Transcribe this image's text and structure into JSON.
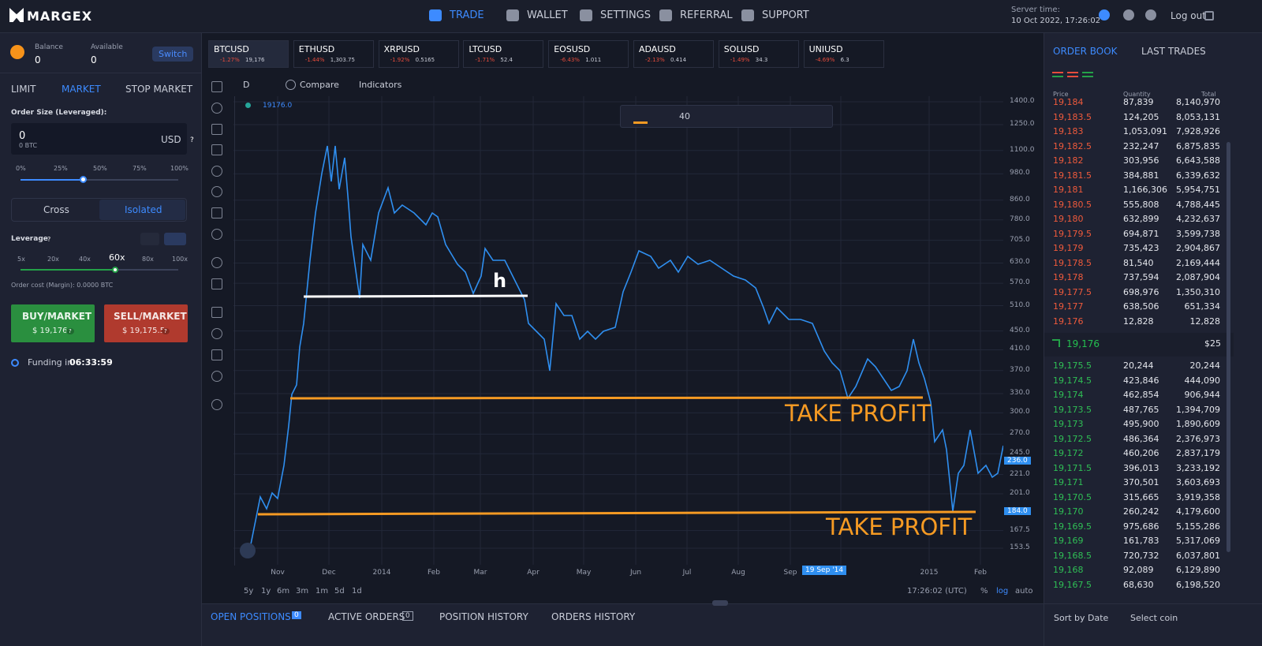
{
  "nav": {
    "logo": "MARGEX",
    "items": [
      "TRADE",
      "WALLET",
      "SETTINGS",
      "REFERRAL",
      "SUPPORT"
    ],
    "server_time_label": "Server time:",
    "server_time": "10 Oct 2022, 17:26:02",
    "logout": "Log out"
  },
  "account": {
    "balance_label": "Balance",
    "balance": "0",
    "available_label": "Available",
    "available": "0",
    "switch": "Switch"
  },
  "order_form": {
    "tabs": [
      "LIMIT",
      "MARKET",
      "STOP MARKET"
    ],
    "size_label": "Order Size (Leveraged):",
    "size": "0",
    "size_btc": "0 BTC",
    "currency": "USD",
    "help": "?",
    "percents": [
      "0%",
      "25%",
      "50%",
      "75%",
      "100%"
    ],
    "margin_modes": [
      "Cross",
      "Isolated"
    ],
    "leverage_label": "Leverage",
    "leverage_help": "?",
    "leverages": [
      "5x",
      "20x",
      "40x",
      "60x",
      "80x",
      "100x"
    ],
    "order_cost": "Order cost (Margin): 0.0000 BTC",
    "buy_label": "BUY/MARKET",
    "buy_price": "$ 19,176",
    "buy_help": "?",
    "sell_label": "SELL/MARKET",
    "sell_price": "$ 19,175.5",
    "sell_help": "?",
    "funding_label": "Funding in",
    "funding_time": "06:33:59"
  },
  "tickers": [
    {
      "symbol": "BTCUSD",
      "change": "-1.27%",
      "price": "19,176"
    },
    {
      "symbol": "ETHUSD",
      "change": "-1.44%",
      "price": "1,303.75"
    },
    {
      "symbol": "XRPUSD",
      "change": "-1.92%",
      "price": "0.5165"
    },
    {
      "symbol": "LTCUSD",
      "change": "-1.71%",
      "price": "52.4"
    },
    {
      "symbol": "EOSUSD",
      "change": "-6.43%",
      "price": "1.011"
    },
    {
      "symbol": "ADAUSD",
      "change": "-2.13%",
      "price": "0.414"
    },
    {
      "symbol": "SOLUSD",
      "change": "-1.49%",
      "price": "34.3"
    },
    {
      "symbol": "UNIUSD",
      "change": "-4.69%",
      "price": "6.3"
    }
  ],
  "chart": {
    "interval": "D",
    "compare": "Compare",
    "indicators": "Indicators",
    "last_value": "19176.0",
    "line_width": "40",
    "y_labels": [
      "1400.0",
      "1250.0",
      "1100.0",
      "980.0",
      "860.0",
      "780.0",
      "705.0",
      "630.0",
      "570.0",
      "510.0",
      "450.0",
      "410.0",
      "370.0",
      "330.0",
      "300.0",
      "270.0",
      "245.0",
      "221.0",
      "201.0",
      "167.5",
      "153.5"
    ],
    "price_tags": [
      "236.0",
      "184.0"
    ],
    "x_labels": [
      "Nov",
      "Dec",
      "2014",
      "Feb",
      "Mar",
      "Apr",
      "May",
      "Jun",
      "Jul",
      "Aug",
      "Sep",
      "ct",
      "2015",
      "Feb"
    ],
    "date_tag": "19 Sep '14",
    "annotations": [
      "h",
      "TAKE PROFIT",
      "TAKE PROFIT"
    ],
    "ranges": [
      "5y",
      "1y",
      "6m",
      "3m",
      "1m",
      "5d",
      "1d"
    ],
    "clock": "17:26:02 (UTC)",
    "scale_options": [
      "%",
      "log",
      "auto"
    ]
  },
  "bottom_tabs": [
    {
      "label": "OPEN POSITIONS",
      "count": "0"
    },
    {
      "label": "ACTIVE ORDERS",
      "count": "0"
    },
    {
      "label": "POSITION HISTORY"
    },
    {
      "label": "ORDERS HISTORY"
    }
  ],
  "order_book": {
    "tabs": [
      "ORDER BOOK",
      "LAST TRADES"
    ],
    "columns": [
      "Price",
      "Quantity",
      "Total"
    ],
    "asks": [
      [
        "19,184",
        "87,839",
        "8,140,970"
      ],
      [
        "19,183.5",
        "124,205",
        "8,053,131"
      ],
      [
        "19,183",
        "1,053,091",
        "7,928,926"
      ],
      [
        "19,182.5",
        "232,247",
        "6,875,835"
      ],
      [
        "19,182",
        "303,956",
        "6,643,588"
      ],
      [
        "19,181.5",
        "384,881",
        "6,339,632"
      ],
      [
        "19,181",
        "1,166,306",
        "5,954,751"
      ],
      [
        "19,180.5",
        "555,808",
        "4,788,445"
      ],
      [
        "19,180",
        "632,899",
        "4,232,637"
      ],
      [
        "19,179.5",
        "694,871",
        "3,599,738"
      ],
      [
        "19,179",
        "735,423",
        "2,904,867"
      ],
      [
        "19,178.5",
        "81,540",
        "2,169,444"
      ],
      [
        "19,178",
        "737,594",
        "2,087,904"
      ],
      [
        "19,177.5",
        "698,976",
        "1,350,310"
      ],
      [
        "19,177",
        "638,506",
        "651,334"
      ],
      [
        "19,176",
        "12,828",
        "12,828"
      ]
    ],
    "last_price": "19,176",
    "last_size": "$25",
    "bids": [
      [
        "19,175.5",
        "20,244",
        "20,244"
      ],
      [
        "19,174.5",
        "423,846",
        "444,090"
      ],
      [
        "19,174",
        "462,854",
        "906,944"
      ],
      [
        "19,173.5",
        "487,765",
        "1,394,709"
      ],
      [
        "19,173",
        "495,900",
        "1,890,609"
      ],
      [
        "19,172.5",
        "486,364",
        "2,376,973"
      ],
      [
        "19,172",
        "460,206",
        "2,837,179"
      ],
      [
        "19,171.5",
        "396,013",
        "3,233,192"
      ],
      [
        "19,171",
        "370,501",
        "3,603,693"
      ],
      [
        "19,170.5",
        "315,665",
        "3,919,358"
      ],
      [
        "19,170",
        "260,242",
        "4,179,600"
      ],
      [
        "19,169.5",
        "975,686",
        "5,155,286"
      ],
      [
        "19,169",
        "161,783",
        "5,317,069"
      ],
      [
        "19,168.5",
        "720,732",
        "6,037,801"
      ],
      [
        "19,168",
        "92,089",
        "6,129,890"
      ],
      [
        "19,167.5",
        "68,630",
        "6,198,520"
      ]
    ],
    "sort": "Sort by Date",
    "coin": "Select coin"
  }
}
